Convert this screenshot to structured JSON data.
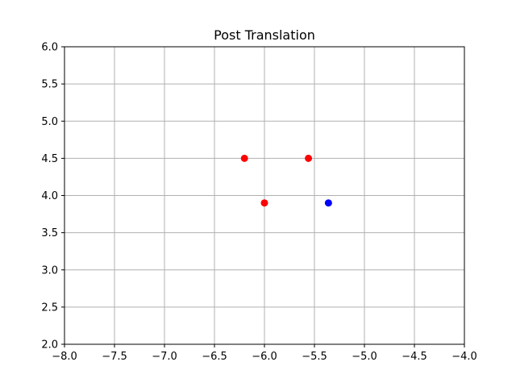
{
  "chart_data": {
    "type": "scatter",
    "title": "Post Translation",
    "xlabel": "",
    "ylabel": "",
    "xlim": [
      -8.0,
      -4.0
    ],
    "ylim": [
      2.0,
      6.0
    ],
    "grid": true,
    "x_ticks": [
      "−8.0",
      "−7.5",
      "−7.0",
      "−6.5",
      "−6.0",
      "−5.5",
      "−5.0",
      "−4.5",
      "−4.0"
    ],
    "x_tick_values": [
      -8.0,
      -7.5,
      -7.0,
      -6.5,
      -6.0,
      -5.5,
      -5.0,
      -4.5,
      -4.0
    ],
    "y_ticks": [
      "2.0",
      "2.5",
      "3.0",
      "3.5",
      "4.0",
      "4.5",
      "5.0",
      "5.5",
      "6.0"
    ],
    "y_tick_values": [
      2.0,
      2.5,
      3.0,
      3.5,
      4.0,
      4.5,
      5.0,
      5.5,
      6.0
    ],
    "series": [
      {
        "color": "#ff0000",
        "points": [
          {
            "x": -6.2,
            "y": 4.5
          },
          {
            "x": -6.0,
            "y": 3.9
          },
          {
            "x": -5.56,
            "y": 4.5
          }
        ]
      },
      {
        "color": "#0000ff",
        "points": [
          {
            "x": -5.36,
            "y": 3.9
          }
        ]
      }
    ]
  }
}
